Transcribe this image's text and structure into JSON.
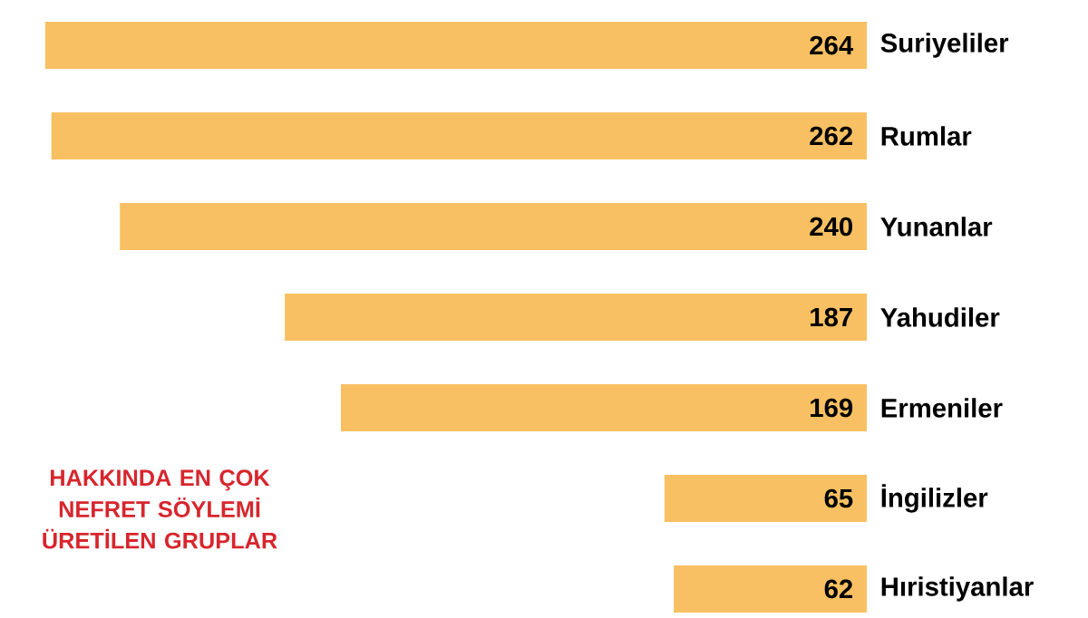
{
  "chart_data": {
    "type": "bar",
    "orientation": "horizontal",
    "title": "HAKKINDA EN ÇOK NEFRET SÖYLEMİ ÜRETİLEN GRUPLAR",
    "categories": [
      "Suriyeliler",
      "Rumlar",
      "Yunanlar",
      "Yahudiler",
      "Ermeniler",
      "İngilizler",
      "Hıristiyanlar"
    ],
    "values": [
      264,
      262,
      240,
      187,
      169,
      65,
      62
    ],
    "color": "#f8c062",
    "data_labels": true
  }
}
